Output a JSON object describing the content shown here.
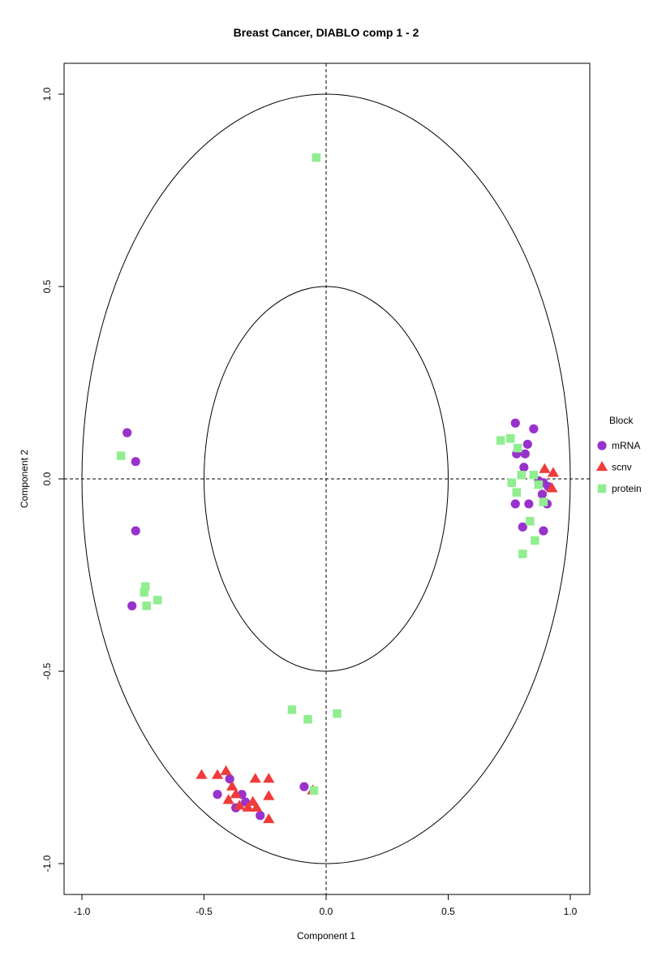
{
  "chart_data": {
    "type": "scatter",
    "title": "Breast Cancer, DIABLO comp 1 - 2",
    "xlabel": "Component  1",
    "ylabel": "Component  2",
    "xlim": [
      -1.0,
      1.0
    ],
    "ylim": [
      -1.0,
      1.0
    ],
    "x_ticks": [
      "-1.0",
      "-0.5",
      "0.0",
      "0.5",
      "1.0"
    ],
    "y_ticks": [
      "-1.0",
      "-0.5",
      "0.0",
      "0.5",
      "1.0"
    ],
    "x_tick_values": [
      -1.0,
      -0.5,
      0.0,
      0.5,
      1.0
    ],
    "y_tick_values": [
      -1.0,
      -0.5,
      0.0,
      0.5,
      1.0
    ],
    "circles": [
      1.0,
      0.5
    ],
    "reference_lines": {
      "x": 0.0,
      "y": 0.0,
      "style": "dashed"
    },
    "grid": false,
    "legend": {
      "title": "Block",
      "placement": "right",
      "entries": [
        {
          "label": "mRNA",
          "color": "#9932CC",
          "shape": "circle"
        },
        {
          "label": "scnv",
          "color": "#EF3B3B",
          "shape": "triangle"
        },
        {
          "label": "protein",
          "color": "#90EE90",
          "shape": "square"
        }
      ]
    },
    "series": [
      {
        "name": "mRNA",
        "color": "#9932CC",
        "shape": "circle",
        "points": [
          [
            -0.815,
            0.12
          ],
          [
            -0.78,
            0.045
          ],
          [
            -0.78,
            -0.135
          ],
          [
            -0.795,
            -0.33
          ],
          [
            0.775,
            0.145
          ],
          [
            0.85,
            0.13
          ],
          [
            0.78,
            0.065
          ],
          [
            0.815,
            0.065
          ],
          [
            0.825,
            0.09
          ],
          [
            0.81,
            0.03
          ],
          [
            0.87,
            -0.005
          ],
          [
            0.89,
            -0.01
          ],
          [
            0.91,
            -0.02
          ],
          [
            0.885,
            -0.04
          ],
          [
            0.905,
            -0.065
          ],
          [
            0.83,
            -0.065
          ],
          [
            0.775,
            -0.065
          ],
          [
            0.805,
            -0.125
          ],
          [
            0.89,
            -0.135
          ],
          [
            -0.445,
            -0.82
          ],
          [
            -0.395,
            -0.78
          ],
          [
            -0.345,
            -0.82
          ],
          [
            -0.33,
            -0.84
          ],
          [
            -0.37,
            -0.855
          ],
          [
            -0.27,
            -0.875
          ],
          [
            -0.09,
            -0.8
          ]
        ]
      },
      {
        "name": "scnv",
        "color": "#EF3B3B",
        "shape": "triangle",
        "points": [
          [
            0.895,
            0.025
          ],
          [
            0.93,
            0.015
          ],
          [
            0.925,
            -0.025
          ],
          [
            -0.51,
            -0.77
          ],
          [
            -0.445,
            -0.77
          ],
          [
            -0.41,
            -0.76
          ],
          [
            -0.385,
            -0.8
          ],
          [
            -0.4,
            -0.835
          ],
          [
            -0.37,
            -0.82
          ],
          [
            -0.355,
            -0.85
          ],
          [
            -0.32,
            -0.855
          ],
          [
            -0.3,
            -0.84
          ],
          [
            -0.285,
            -0.855
          ],
          [
            -0.29,
            -0.78
          ],
          [
            -0.235,
            -0.78
          ],
          [
            -0.235,
            -0.825
          ],
          [
            -0.235,
            -0.885
          ],
          [
            -0.055,
            -0.81
          ]
        ]
      },
      {
        "name": "protein",
        "color": "#90EE90",
        "shape": "square",
        "points": [
          [
            -0.04,
            0.835
          ],
          [
            -0.84,
            0.06
          ],
          [
            -0.74,
            -0.28
          ],
          [
            -0.745,
            -0.295
          ],
          [
            -0.735,
            -0.33
          ],
          [
            -0.69,
            -0.315
          ],
          [
            0.715,
            0.1
          ],
          [
            0.755,
            0.105
          ],
          [
            0.785,
            0.08
          ],
          [
            0.8,
            0.01
          ],
          [
            0.85,
            0.01
          ],
          [
            0.76,
            -0.01
          ],
          [
            0.87,
            -0.015
          ],
          [
            0.78,
            -0.035
          ],
          [
            0.89,
            -0.06
          ],
          [
            0.835,
            -0.11
          ],
          [
            0.855,
            -0.16
          ],
          [
            0.805,
            -0.195
          ],
          [
            -0.14,
            -0.6
          ],
          [
            -0.075,
            -0.625
          ],
          [
            0.045,
            -0.61
          ],
          [
            -0.05,
            -0.81
          ]
        ]
      }
    ]
  }
}
